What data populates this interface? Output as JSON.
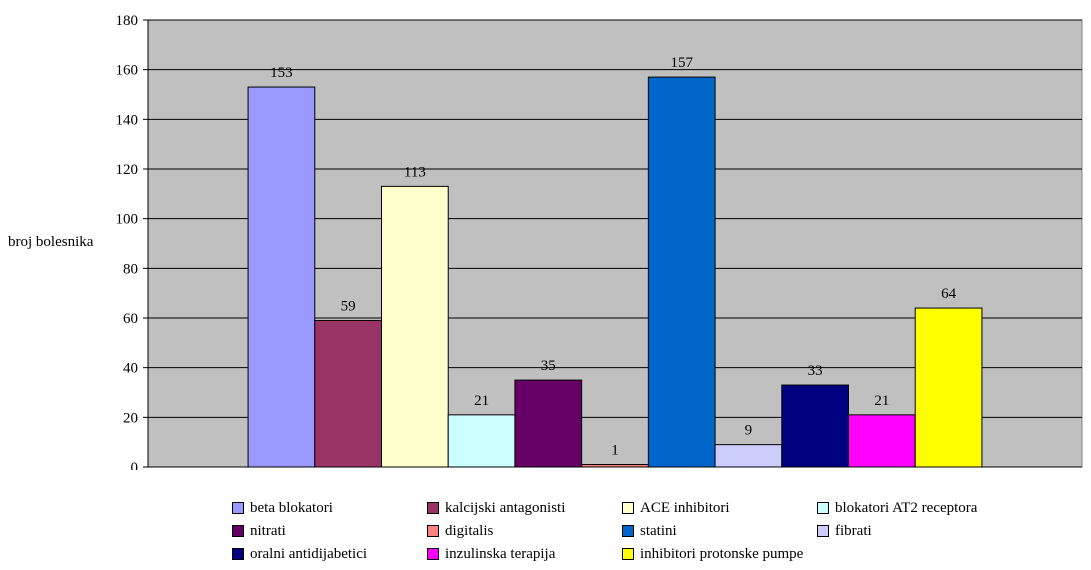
{
  "chart_data": {
    "type": "bar",
    "title": "",
    "xlabel": "",
    "ylabel": "broj bolesnika",
    "ylim": [
      0,
      180
    ],
    "yticks": [
      0,
      20,
      40,
      60,
      80,
      100,
      120,
      140,
      160,
      180
    ],
    "grid": "horizontal",
    "background": "#C0C0C0",
    "legend_position": "bottom",
    "categories": [
      "beta blokatori",
      "kalcijski antagonisti",
      "ACE inhibitori",
      "blokatori AT2 receptora",
      "nitrati",
      "digitalis",
      "statini",
      "fibrati",
      "oralni antidijabetici",
      "inzulinska terapija",
      "inhibitori protonske pumpe"
    ],
    "values": [
      153,
      59,
      113,
      21,
      35,
      1,
      157,
      9,
      33,
      21,
      64
    ],
    "colors": [
      "#9999FF",
      "#993366",
      "#FFFFCC",
      "#CCFFFF",
      "#660066",
      "#FF8080",
      "#0066CC",
      "#CCCCFF",
      "#000080",
      "#FF00FF",
      "#FFFF00"
    ]
  }
}
